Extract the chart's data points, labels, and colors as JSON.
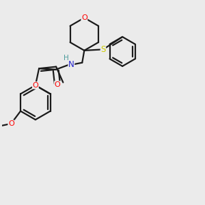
{
  "background_color": "#ebebeb",
  "bond_color": "#1a1a1a",
  "atom_colors": {
    "O": "#ff0000",
    "N": "#2020cc",
    "S": "#cccc00",
    "H": "#4a9a9a",
    "C": "#1a1a1a"
  },
  "figsize": [
    3.0,
    3.0
  ],
  "dpi": 100
}
